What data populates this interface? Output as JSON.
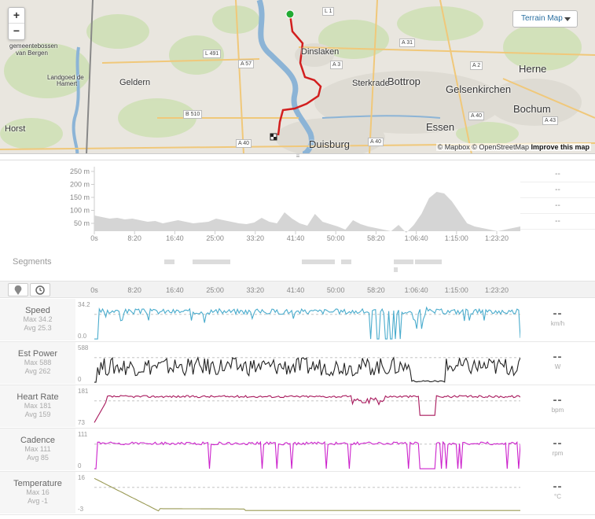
{
  "map": {
    "zoom_in": "+",
    "zoom_out": "−",
    "map_type": "Terrain Map",
    "attribution_mapbox": "© Mapbox",
    "attribution_osm": "© OpenStreetMap",
    "attribution_improve": "Improve this map",
    "places": [
      {
        "name": "Dinslaken",
        "size": "m"
      },
      {
        "name": "Bottrop",
        "size": "l"
      },
      {
        "name": "Gelsenkirchen",
        "size": "l"
      },
      {
        "name": "Herne",
        "size": "l"
      },
      {
        "name": "Bochum",
        "size": "l"
      },
      {
        "name": "Essen",
        "size": "l"
      },
      {
        "name": "Duisburg",
        "size": "l"
      },
      {
        "name": "Sterkrade",
        "size": "m"
      },
      {
        "name": "Geldern",
        "size": "m"
      },
      {
        "name": "Horst",
        "size": "m"
      },
      {
        "name": "gemeentebossen",
        "size": "s"
      },
      {
        "name": "van Bergen",
        "size": "s"
      },
      {
        "name": "Landgoed de",
        "size": "s"
      },
      {
        "name": "Hamert",
        "size": "s"
      }
    ],
    "roads": [
      "L 1",
      "A 31",
      "L 491",
      "A 57",
      "A 3",
      "A 2",
      "B 510",
      "A 40",
      "A 40",
      "A 40",
      "A 43"
    ]
  },
  "elevation": {
    "y_ticks": [
      "250 m",
      "200 m",
      "150 m",
      "100 m",
      "50 m"
    ],
    "side_values": [
      "--",
      "--",
      "--",
      "--"
    ]
  },
  "time_ticks": [
    "0s",
    "8:20",
    "16:40",
    "25:00",
    "33:20",
    "41:40",
    "50:00",
    "58:20",
    "1:06:40",
    "1:15:00",
    "1:23:20"
  ],
  "segments_label": "Segments",
  "streams": [
    {
      "name": "Speed",
      "max": "Max 34.2",
      "avg": "Avg 25.3",
      "top": "34.2",
      "bottom": "0.0",
      "value": "--",
      "unit": "km/h",
      "color": "#4aaccd"
    },
    {
      "name": "Est Power",
      "max": "Max 588",
      "avg": "Avg 262",
      "top": "588",
      "bottom": "0",
      "value": "--",
      "unit": "W",
      "color": "#222222"
    },
    {
      "name": "Heart Rate",
      "max": "Max 181",
      "avg": "Avg 159",
      "top": "181",
      "bottom": "73",
      "value": "--",
      "unit": "bpm",
      "color": "#a8185c"
    },
    {
      "name": "Cadence",
      "max": "Max 111",
      "avg": "Avg 85",
      "top": "111",
      "bottom": "0",
      "value": "--",
      "unit": "rpm",
      "color": "#cc22cc"
    },
    {
      "name": "Temperature",
      "max": "Max 16",
      "avg": "Avg -1",
      "top": "16",
      "bottom": "-3",
      "value": "--",
      "unit": "°C",
      "color": "#9a9a55"
    }
  ]
}
